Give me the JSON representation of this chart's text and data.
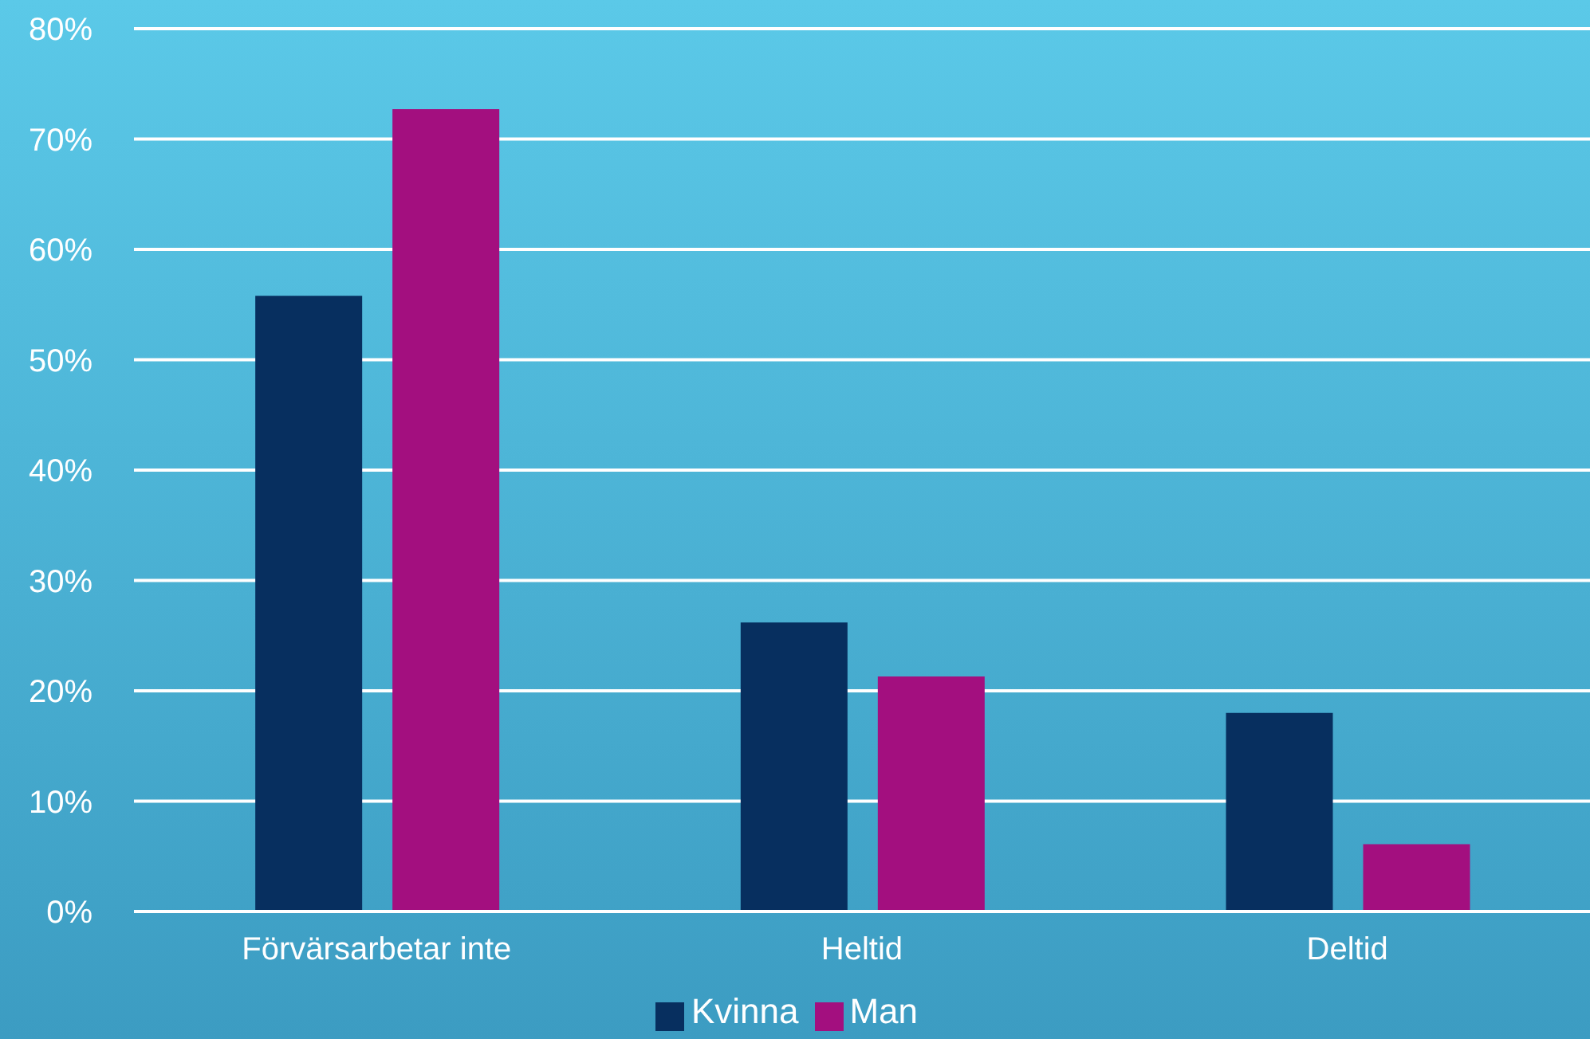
{
  "chart_data": {
    "type": "bar",
    "categories": [
      "Förvärsarbetar inte",
      "Heltid",
      "Deltid"
    ],
    "series": [
      {
        "name": "Kvinna",
        "color": "#072f5f",
        "values": [
          55.8,
          26.2,
          18
        ]
      },
      {
        "name": "Man",
        "color": "#a30f7f",
        "values": [
          72.7,
          21.3,
          6.1
        ]
      }
    ],
    "ylim": [
      0,
      80
    ],
    "yticks": [
      {
        "value": 0,
        "label": "0%"
      },
      {
        "value": 10,
        "label": "10%"
      },
      {
        "value": 20,
        "label": "20%"
      },
      {
        "value": 30,
        "label": "30%"
      },
      {
        "value": 40,
        "label": "40%"
      },
      {
        "value": 50,
        "label": "50%"
      },
      {
        "value": 60,
        "label": "60%"
      },
      {
        "value": 70,
        "label": "70%"
      },
      {
        "value": 80,
        "label": "80%"
      }
    ],
    "grid": "y",
    "legend": "bottom"
  }
}
